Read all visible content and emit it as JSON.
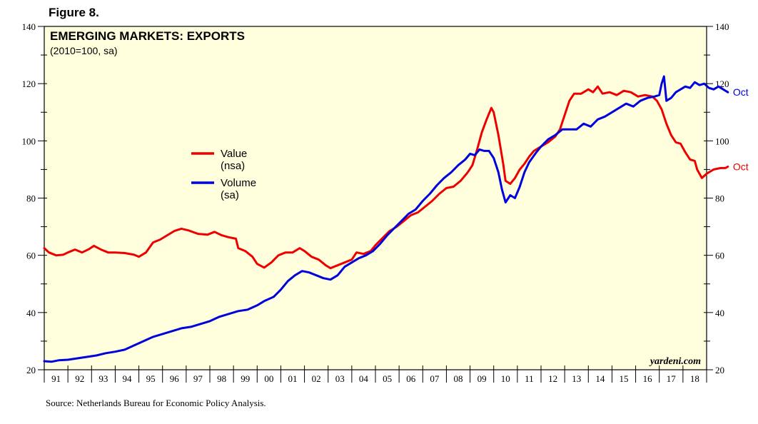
{
  "figure_label": "Figure 8.",
  "source": "Source: Netherlands Bureau for Economic Policy Analysis.",
  "watermark": "yardeni.com",
  "colors": {
    "plot_bg": "#ffffdd",
    "value": "#ee0000",
    "volume": "#0000dd",
    "frame": "#000000"
  },
  "chart_data": {
    "type": "line",
    "title": "EMERGING MARKETS: EXPORTS",
    "subtitle": "(2010=100, sa)",
    "xlabel": "",
    "ylabel": "",
    "x_start_year": 1991,
    "xlim": [
      1991.0,
      2019.0
    ],
    "ylim": [
      20,
      140
    ],
    "y_ticks": [
      20,
      40,
      60,
      80,
      100,
      120,
      140
    ],
    "x_tick_labels": [
      "91",
      "92",
      "93",
      "94",
      "95",
      "96",
      "97",
      "98",
      "99",
      "00",
      "01",
      "02",
      "03",
      "04",
      "05",
      "06",
      "07",
      "08",
      "09",
      "10",
      "11",
      "12",
      "13",
      "14",
      "15",
      "16",
      "17",
      "18"
    ],
    "legend": [
      {
        "name": "Value",
        "sub": "(nsa)"
      },
      {
        "name": "Volume",
        "sub": "(sa)"
      }
    ],
    "series": [
      {
        "name": "Value (nsa)",
        "end_label": "Oct",
        "points": [
          [
            1991.0,
            62.5
          ],
          [
            1991.2,
            61
          ],
          [
            1991.5,
            60
          ],
          [
            1991.8,
            60.2
          ],
          [
            1992.0,
            61
          ],
          [
            1992.3,
            62
          ],
          [
            1992.6,
            61
          ],
          [
            1992.9,
            62.2
          ],
          [
            1993.1,
            63.3
          ],
          [
            1993.4,
            62
          ],
          [
            1993.7,
            61
          ],
          [
            1994.0,
            61
          ],
          [
            1994.4,
            60.8
          ],
          [
            1994.8,
            60.2
          ],
          [
            1995.0,
            59.5
          ],
          [
            1995.3,
            61
          ],
          [
            1995.6,
            64.5
          ],
          [
            1995.9,
            65.5
          ],
          [
            1996.2,
            67
          ],
          [
            1996.5,
            68.5
          ],
          [
            1996.8,
            69.3
          ],
          [
            1997.1,
            68.7
          ],
          [
            1997.5,
            67.5
          ],
          [
            1997.9,
            67.2
          ],
          [
            1998.2,
            68.2
          ],
          [
            1998.5,
            67
          ],
          [
            1998.8,
            66.3
          ],
          [
            1999.1,
            65.8
          ],
          [
            1999.2,
            62.5
          ],
          [
            1999.5,
            61.5
          ],
          [
            1999.8,
            59.5
          ],
          [
            2000.0,
            57
          ],
          [
            2000.3,
            55.7
          ],
          [
            2000.6,
            57.5
          ],
          [
            2000.9,
            60
          ],
          [
            2001.2,
            61
          ],
          [
            2001.5,
            61
          ],
          [
            2001.8,
            62.5
          ],
          [
            2002.0,
            61.5
          ],
          [
            2002.3,
            59.5
          ],
          [
            2002.6,
            58.5
          ],
          [
            2002.9,
            56.5
          ],
          [
            2003.1,
            55.5
          ],
          [
            2003.4,
            56.5
          ],
          [
            2003.7,
            57.5
          ],
          [
            2004.0,
            58.5
          ],
          [
            2004.2,
            61
          ],
          [
            2004.5,
            60.5
          ],
          [
            2004.8,
            61.5
          ],
          [
            2005.0,
            63.5
          ],
          [
            2005.3,
            66
          ],
          [
            2005.6,
            68.5
          ],
          [
            2005.9,
            70
          ],
          [
            2006.2,
            72
          ],
          [
            2006.5,
            74
          ],
          [
            2006.8,
            75
          ],
          [
            2007.1,
            77
          ],
          [
            2007.4,
            79
          ],
          [
            2007.7,
            81.5
          ],
          [
            2008.0,
            83.5
          ],
          [
            2008.3,
            84
          ],
          [
            2008.6,
            86
          ],
          [
            2008.9,
            89
          ],
          [
            2009.1,
            91.5
          ],
          [
            2009.3,
            97
          ],
          [
            2009.5,
            103
          ],
          [
            2009.7,
            107.5
          ],
          [
            2009.9,
            111.5
          ],
          [
            2010.0,
            110
          ],
          [
            2010.2,
            102
          ],
          [
            2010.4,
            92
          ],
          [
            2010.5,
            86
          ],
          [
            2010.7,
            85
          ],
          [
            2010.9,
            87
          ],
          [
            2011.1,
            90
          ],
          [
            2011.3,
            92
          ],
          [
            2011.5,
            94.5
          ],
          [
            2011.7,
            96.5
          ],
          [
            2012.0,
            98
          ],
          [
            2012.3,
            99.5
          ],
          [
            2012.6,
            101.5
          ],
          [
            2012.8,
            104
          ],
          [
            2013.0,
            109
          ],
          [
            2013.2,
            114
          ],
          [
            2013.4,
            116.5
          ],
          [
            2013.7,
            116.5
          ],
          [
            2014.0,
            118
          ],
          [
            2014.2,
            117
          ],
          [
            2014.4,
            119
          ],
          [
            2014.6,
            116.5
          ],
          [
            2014.9,
            117
          ],
          [
            2015.2,
            116
          ],
          [
            2015.5,
            117.5
          ],
          [
            2015.8,
            117
          ],
          [
            2016.1,
            115.5
          ],
          [
            2016.4,
            116
          ],
          [
            2016.7,
            115.5
          ],
          [
            2016.9,
            114
          ],
          [
            2017.1,
            111
          ],
          [
            2017.3,
            106
          ],
          [
            2017.5,
            102
          ],
          [
            2017.7,
            99.5
          ],
          [
            2017.9,
            99
          ],
          [
            2018.1,
            96
          ],
          [
            2018.3,
            93.5
          ],
          [
            2018.5,
            93
          ],
          [
            2018.6,
            90
          ],
          [
            2018.8,
            87
          ],
          [
            2019.0,
            88.5
          ],
          [
            2019.3,
            90
          ],
          [
            2019.6,
            90.5
          ],
          [
            2019.8,
            90.5
          ],
          [
            2019.9,
            91
          ]
        ]
      },
      {
        "name": "Volume (sa)",
        "end_label": "Oct",
        "points": [
          [
            1991.0,
            23
          ],
          [
            1991.3,
            22.8
          ],
          [
            1991.6,
            23.3
          ],
          [
            1992.0,
            23.5
          ],
          [
            1992.4,
            24
          ],
          [
            1992.8,
            24.5
          ],
          [
            1993.2,
            25
          ],
          [
            1993.6,
            25.8
          ],
          [
            1994.0,
            26.3
          ],
          [
            1994.4,
            27
          ],
          [
            1994.8,
            28.5
          ],
          [
            1995.2,
            30
          ],
          [
            1995.6,
            31.5
          ],
          [
            1996.0,
            32.5
          ],
          [
            1996.4,
            33.5
          ],
          [
            1996.8,
            34.5
          ],
          [
            1997.2,
            35
          ],
          [
            1997.6,
            36
          ],
          [
            1998.0,
            37
          ],
          [
            1998.4,
            38.5
          ],
          [
            1998.8,
            39.5
          ],
          [
            1999.2,
            40.5
          ],
          [
            1999.6,
            41
          ],
          [
            2000.0,
            42.5
          ],
          [
            2000.3,
            44
          ],
          [
            2000.7,
            45.5
          ],
          [
            2001.0,
            48
          ],
          [
            2001.3,
            51
          ],
          [
            2001.6,
            53
          ],
          [
            2001.9,
            54.5
          ],
          [
            2002.2,
            54
          ],
          [
            2002.5,
            53
          ],
          [
            2002.8,
            52
          ],
          [
            2003.1,
            51.5
          ],
          [
            2003.4,
            53
          ],
          [
            2003.7,
            56
          ],
          [
            2004.0,
            57.5
          ],
          [
            2004.3,
            59
          ],
          [
            2004.6,
            60
          ],
          [
            2004.9,
            61.5
          ],
          [
            2005.2,
            64
          ],
          [
            2005.5,
            67
          ],
          [
            2005.8,
            69.5
          ],
          [
            2006.1,
            72
          ],
          [
            2006.4,
            74.5
          ],
          [
            2006.7,
            76
          ],
          [
            2007.0,
            79
          ],
          [
            2007.3,
            81.5
          ],
          [
            2007.6,
            84.5
          ],
          [
            2007.9,
            87
          ],
          [
            2008.2,
            89
          ],
          [
            2008.5,
            91.5
          ],
          [
            2008.8,
            93.5
          ],
          [
            2009.0,
            95.5
          ],
          [
            2009.2,
            95
          ],
          [
            2009.4,
            97
          ],
          [
            2009.6,
            96.5
          ],
          [
            2009.8,
            96.5
          ],
          [
            2010.0,
            94
          ],
          [
            2010.2,
            89
          ],
          [
            2010.35,
            83
          ],
          [
            2010.5,
            78.5
          ],
          [
            2010.7,
            81
          ],
          [
            2010.9,
            80
          ],
          [
            2011.1,
            84
          ],
          [
            2011.3,
            89
          ],
          [
            2011.5,
            92.5
          ],
          [
            2011.8,
            96
          ],
          [
            2012.0,
            98
          ],
          [
            2012.3,
            100.5
          ],
          [
            2012.6,
            102
          ],
          [
            2012.9,
            104
          ],
          [
            2013.2,
            104
          ],
          [
            2013.5,
            104
          ],
          [
            2013.8,
            106
          ],
          [
            2014.1,
            105
          ],
          [
            2014.4,
            107.5
          ],
          [
            2014.7,
            108.5
          ],
          [
            2015.0,
            110
          ],
          [
            2015.3,
            111.5
          ],
          [
            2015.6,
            113
          ],
          [
            2015.9,
            112
          ],
          [
            2016.2,
            114
          ],
          [
            2016.5,
            115
          ],
          [
            2016.8,
            115.5
          ],
          [
            2017.0,
            116
          ],
          [
            2017.1,
            120
          ],
          [
            2017.2,
            122.5
          ],
          [
            2017.3,
            114
          ],
          [
            2017.5,
            115
          ],
          [
            2017.7,
            117
          ],
          [
            2017.9,
            118
          ],
          [
            2018.1,
            119
          ],
          [
            2018.3,
            118.5
          ],
          [
            2018.5,
            120.5
          ],
          [
            2018.7,
            119.5
          ],
          [
            2018.9,
            120
          ],
          [
            2019.1,
            118.5
          ],
          [
            2019.3,
            118
          ],
          [
            2019.5,
            119
          ],
          [
            2019.7,
            118
          ],
          [
            2019.9,
            117
          ]
        ]
      }
    ]
  }
}
